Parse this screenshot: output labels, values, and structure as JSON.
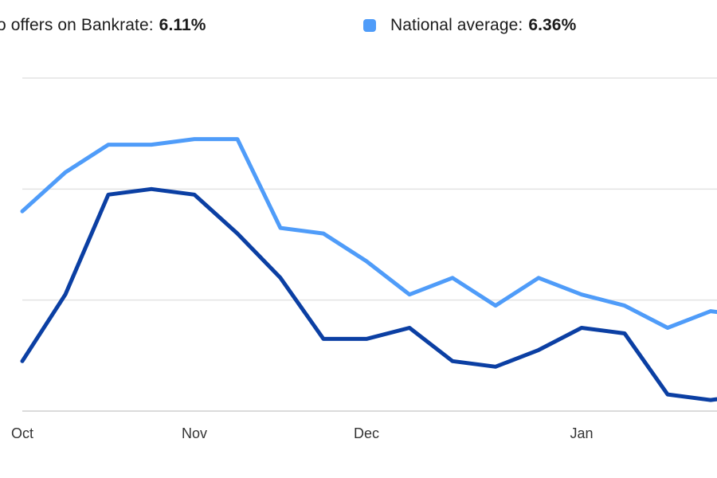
{
  "legend": [
    {
      "label": "o offers on Bankrate:",
      "value": "6.11%",
      "color": "#0b3fa3"
    },
    {
      "label": "National average:",
      "value": "6.36%",
      "color": "#4f9cf9"
    }
  ],
  "chart_data": {
    "type": "line",
    "xlabel": "",
    "ylabel": "",
    "grid": true,
    "legend_position": "top",
    "x_tick_labels": [
      "Oct",
      "Nov",
      "Dec",
      "Jan"
    ],
    "x_tick_index": [
      0,
      4,
      8,
      13
    ],
    "ylim": [
      6.0,
      6.6
    ],
    "gridline_values": [
      6.0,
      6.2,
      6.4,
      6.6
    ],
    "series": [
      {
        "name": "offers on Bankrate",
        "color": "#0b3fa3",
        "values": [
          6.09,
          6.21,
          6.39,
          6.4,
          6.39,
          6.32,
          6.24,
          6.13,
          6.13,
          6.15,
          6.09,
          6.08,
          6.11,
          6.15,
          6.14,
          6.03,
          6.02,
          6.03
        ]
      },
      {
        "name": "National average",
        "color": "#4f9cf9",
        "values": [
          6.36,
          6.43,
          6.48,
          6.48,
          6.49,
          6.49,
          6.33,
          6.32,
          6.27,
          6.21,
          6.24,
          6.19,
          6.24,
          6.21,
          6.19,
          6.15,
          6.18,
          6.17
        ]
      }
    ]
  }
}
